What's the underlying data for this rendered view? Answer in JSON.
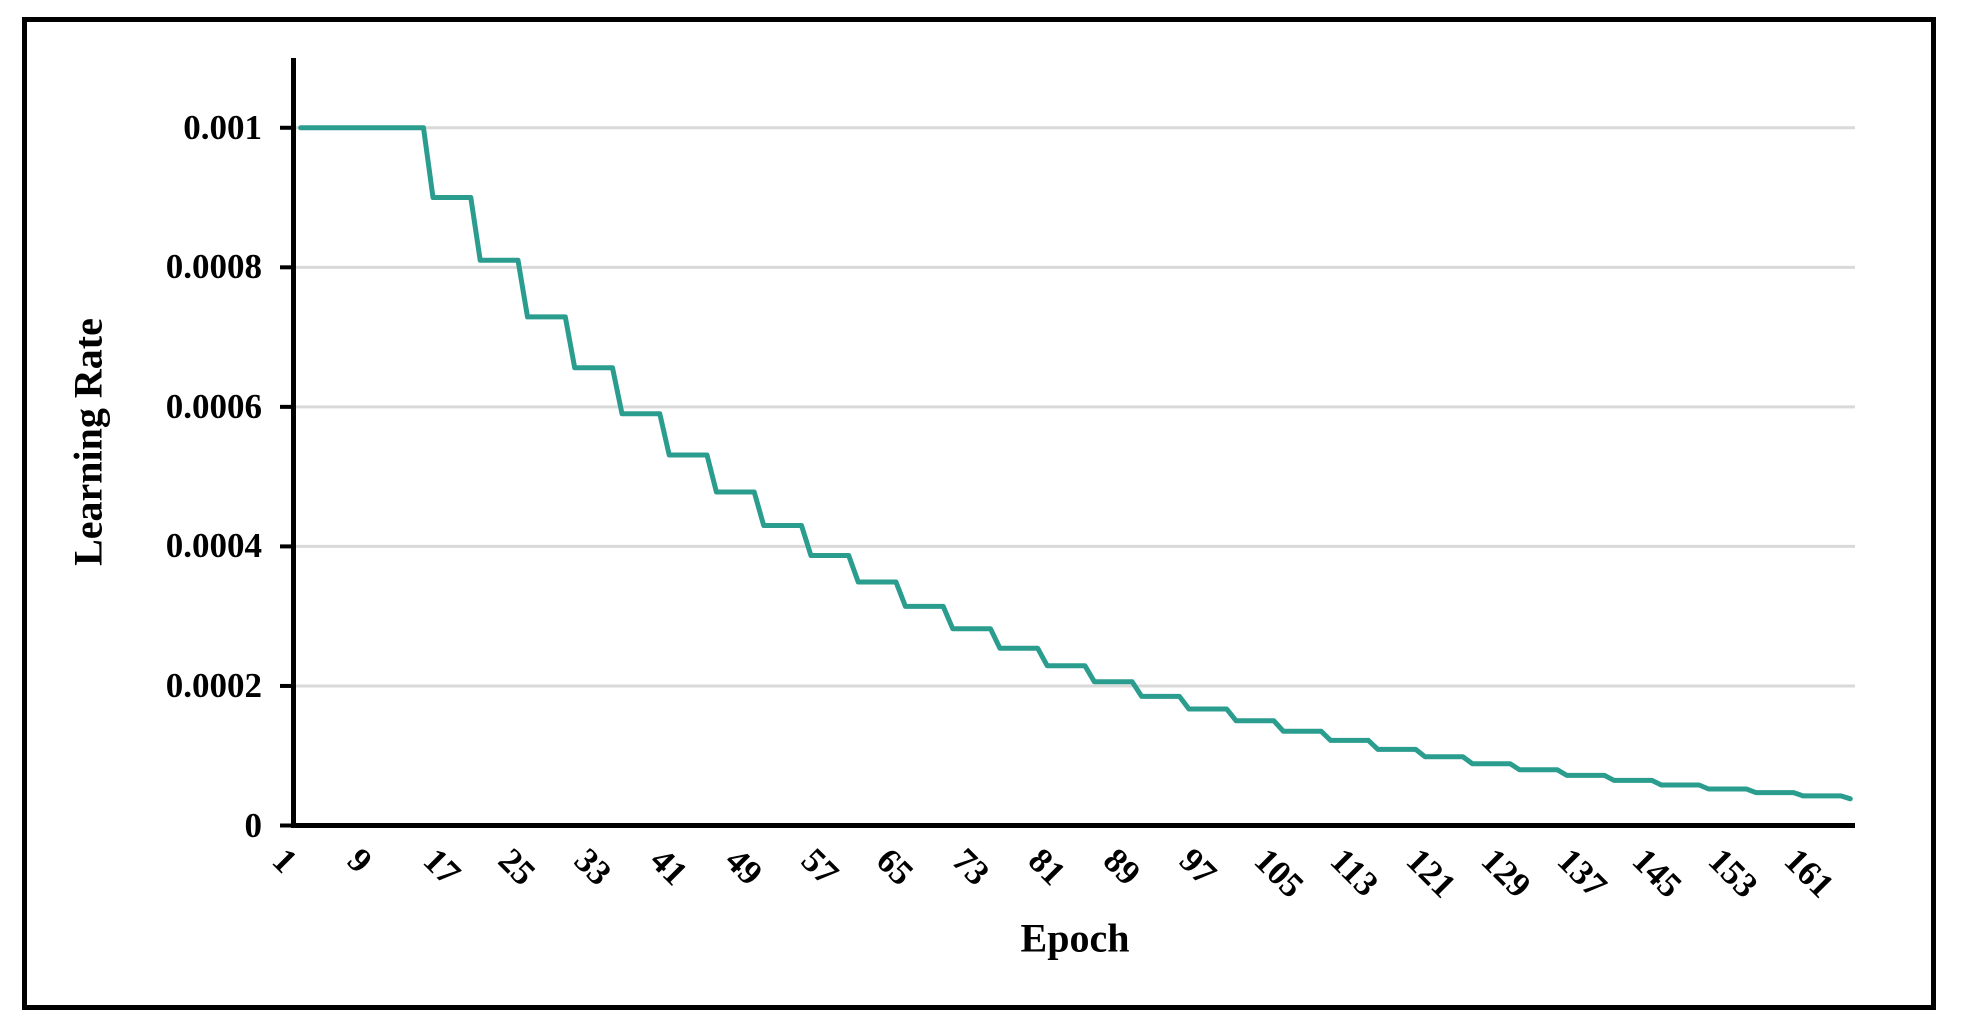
{
  "chart_data": {
    "type": "line",
    "title": "",
    "xlabel": "Epoch",
    "ylabel": "Learning Rate",
    "legend": "none",
    "grid": "horizontal",
    "x_range": [
      1,
      165
    ],
    "ylim": [
      0,
      0.0011
    ],
    "x_ticks": [
      1,
      9,
      17,
      25,
      33,
      41,
      49,
      57,
      65,
      73,
      81,
      89,
      97,
      105,
      113,
      121,
      129,
      137,
      145,
      153,
      161
    ],
    "y_ticks": [
      {
        "value": 0,
        "label": "0"
      },
      {
        "value": 0.0002,
        "label": "0.0002"
      },
      {
        "value": 0.0004,
        "label": "0.0004"
      },
      {
        "value": 0.0006,
        "label": "0.0006"
      },
      {
        "value": 0.0008,
        "label": "0.0008"
      },
      {
        "value": 0.001,
        "label": "0.001"
      }
    ],
    "series": [
      {
        "name": "Learning Rate",
        "x_start": 1,
        "x_step": 1,
        "values": [
          0.001,
          0.001,
          0.001,
          0.001,
          0.001,
          0.001,
          0.001,
          0.001,
          0.001,
          0.001,
          0.001,
          0.001,
          0.001,
          0.001,
          0.0009,
          0.0009,
          0.0009,
          0.0009,
          0.0009,
          0.00081,
          0.00081,
          0.00081,
          0.00081,
          0.00081,
          0.000729,
          0.000729,
          0.000729,
          0.000729,
          0.000729,
          0.000656,
          0.000656,
          0.000656,
          0.000656,
          0.000656,
          0.00059,
          0.00059,
          0.00059,
          0.00059,
          0.00059,
          0.000531,
          0.000531,
          0.000531,
          0.000531,
          0.000531,
          0.000478,
          0.000478,
          0.000478,
          0.000478,
          0.000478,
          0.00043,
          0.00043,
          0.00043,
          0.00043,
          0.00043,
          0.000387,
          0.000387,
          0.000387,
          0.000387,
          0.000387,
          0.000349,
          0.000349,
          0.000349,
          0.000349,
          0.000349,
          0.000314,
          0.000314,
          0.000314,
          0.000314,
          0.000314,
          0.000282,
          0.000282,
          0.000282,
          0.000282,
          0.000282,
          0.000254,
          0.000254,
          0.000254,
          0.000254,
          0.000254,
          0.000229,
          0.000229,
          0.000229,
          0.000229,
          0.000229,
          0.000206,
          0.000206,
          0.000206,
          0.000206,
          0.000206,
          0.000185,
          0.000185,
          0.000185,
          0.000185,
          0.000185,
          0.000167,
          0.000167,
          0.000167,
          0.000167,
          0.000167,
          0.00015,
          0.00015,
          0.00015,
          0.00015,
          0.00015,
          0.000135,
          0.000135,
          0.000135,
          0.000135,
          0.000135,
          0.000122,
          0.000122,
          0.000122,
          0.000122,
          0.000122,
          0.000109,
          0.000109,
          0.000109,
          0.000109,
          0.000109,
          9.85e-05,
          9.85e-05,
          9.85e-05,
          9.85e-05,
          9.85e-05,
          8.86e-05,
          8.86e-05,
          8.86e-05,
          8.86e-05,
          8.86e-05,
          7.98e-05,
          7.98e-05,
          7.98e-05,
          7.98e-05,
          7.98e-05,
          7.18e-05,
          7.18e-05,
          7.18e-05,
          7.18e-05,
          7.18e-05,
          6.46e-05,
          6.46e-05,
          6.46e-05,
          6.46e-05,
          6.46e-05,
          5.81e-05,
          5.81e-05,
          5.81e-05,
          5.81e-05,
          5.81e-05,
          5.23e-05,
          5.23e-05,
          5.23e-05,
          5.23e-05,
          5.23e-05,
          4.71e-05,
          4.71e-05,
          4.71e-05,
          4.71e-05,
          4.71e-05,
          4.24e-05,
          4.24e-05,
          4.24e-05,
          4.24e-05,
          4.24e-05,
          3.82e-05
        ]
      }
    ]
  },
  "colors": {
    "line": "#2a9d8f",
    "gridline": "#d9d9d9",
    "axis": "#000000",
    "text": "#000000",
    "frame": "#000000",
    "background": "#ffffff"
  }
}
